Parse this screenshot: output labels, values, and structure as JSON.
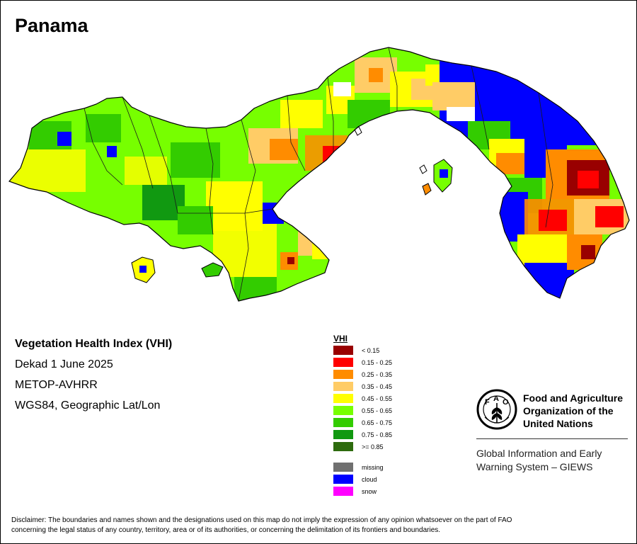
{
  "map": {
    "title": "Panama"
  },
  "info": {
    "index_name": "Vegetation Health Index (VHI)",
    "period": "Dekad 1 June 2025",
    "sensor": "METOP-AVHRR",
    "projection": "WGS84, Geographic Lat/Lon"
  },
  "legend": {
    "title": "VHI",
    "classes": [
      {
        "label": "< 0.15",
        "color": "#990000"
      },
      {
        "label": "0.15 - 0.25",
        "color": "#ff0000"
      },
      {
        "label": "0.25 - 0.35",
        "color": "#ff8c00"
      },
      {
        "label": "0.35 - 0.45",
        "color": "#ffcc66"
      },
      {
        "label": "0.45 - 0.55",
        "color": "#ffff00"
      },
      {
        "label": "0.55 - 0.65",
        "color": "#77ff00"
      },
      {
        "label": "0.65 - 0.75",
        "color": "#33cc00"
      },
      {
        "label": "0.75 - 0.85",
        "color": "#119911"
      },
      {
        "label": ">= 0.85",
        "color": "#2e6b0e"
      }
    ],
    "special": [
      {
        "label": "missing",
        "color": "#707070"
      },
      {
        "label": "cloud",
        "color": "#0000ff"
      },
      {
        "label": "snow",
        "color": "#ff00ff"
      }
    ]
  },
  "organization": {
    "logo_icon": "fao-emblem-icon",
    "name_lines": [
      "Food and Agriculture",
      "Organization of the",
      "United Nations"
    ],
    "system_lines": [
      "Global Information and Early",
      "Warning System – GIEWS"
    ]
  },
  "disclaimer": {
    "line1": "Disclaimer: The boundaries and names shown and the designations used on this map do not imply the expression of any opinion whatsoever on the part of FAO",
    "line2": "concerning the legal status of any country, territory, area or of its authorities, or concerning the delimitation of its frontiers and boundaries."
  }
}
